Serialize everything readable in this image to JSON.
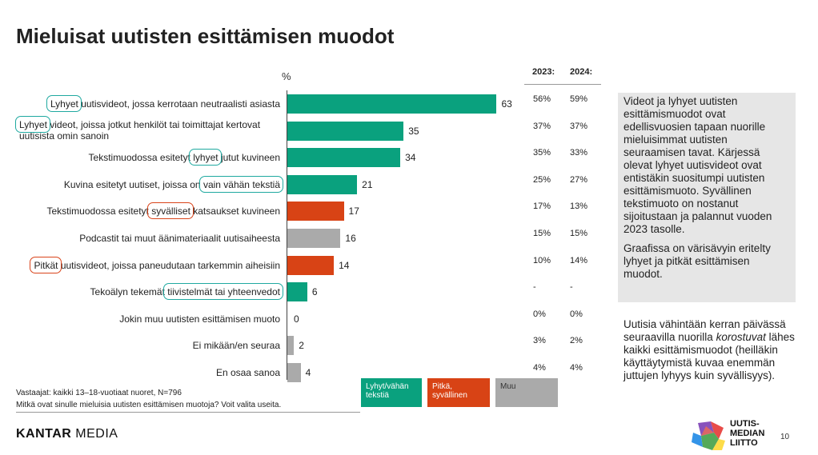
{
  "title": "Mieluisat uutisten esittämisen muodot",
  "chart_data": {
    "type": "bar",
    "orientation": "horizontal",
    "unit_label": "%",
    "categories": [
      {
        "pre": "",
        "hl": "Lyhyet",
        "post": " uutisvideot, jossa kerrotaan neutraalisti asiasta",
        "group": "short"
      },
      {
        "pre": "",
        "hl": "Lyhyet",
        "post": " videot, joissa jotkut henkilöt tai toimittajat kertovat uutisista omin sanoin",
        "group": "short"
      },
      {
        "pre": "Tekstimuodossa esitetyt ",
        "hl": "lyhyet",
        "post": " jutut kuvineen",
        "group": "short"
      },
      {
        "pre": "Kuvina esitetyt uutiset, joissa on ",
        "hl": "vain vähän tekstiä",
        "post": "",
        "group": "short"
      },
      {
        "pre": "Tekstimuodossa esitetyt ",
        "hl": "syvälliset",
        "post": " katsaukset kuvineen",
        "group": "long"
      },
      {
        "pre": "Podcastit  tai muut äänimateriaalit uutisaiheesta",
        "hl": "",
        "post": "",
        "group": "other"
      },
      {
        "pre": "",
        "hl": "Pitkät",
        "post": " uutisvideot, joissa paneudutaan tarkemmin aiheisiin",
        "group": "long"
      },
      {
        "pre": "Tekoälyn tekemät ",
        "hl": "tiivistelmät tai yhteenvedot",
        "post": "",
        "group": "short"
      },
      {
        "pre": "Jokin muu uutisten esittämisen muoto",
        "hl": "",
        "post": "",
        "group": "other"
      },
      {
        "pre": "Ei mikään/en seuraa",
        "hl": "",
        "post": "",
        "group": "other"
      },
      {
        "pre": "En osaa sanoa",
        "hl": "",
        "post": "",
        "group": "other"
      }
    ],
    "values": [
      63,
      35,
      34,
      21,
      17,
      16,
      14,
      6,
      0,
      2,
      4
    ],
    "xlim": [
      0,
      100
    ],
    "year_columns": [
      {
        "label": "2023:",
        "values": [
          "56%",
          "37%",
          "35%",
          "25%",
          "17%",
          "15%",
          "10%",
          "-",
          "0%",
          "3%",
          "4%"
        ]
      },
      {
        "label": "2024:",
        "values": [
          "59%",
          "37%",
          "33%",
          "27%",
          "13%",
          "15%",
          "14%",
          "-",
          "0%",
          "2%",
          "4%"
        ]
      }
    ],
    "colors": {
      "short": "#0aa17e",
      "long": "#d84315",
      "other": "#aaaaaa"
    },
    "legend": [
      {
        "label": "Lyhyt/vähän tekstiä",
        "group": "short"
      },
      {
        "label": "Pitkä, syvällinen",
        "group": "long"
      },
      {
        "label": "Muu",
        "group": "other"
      }
    ]
  },
  "notes": {
    "respondents": "Vastaajat: kaikki 13–18-vuotiaat nuoret, N=796",
    "question": "Mitkä ovat sinulle mieluisia uutisten esittämisen muotoja? Voit valita useita."
  },
  "info": {
    "paragraph1": "Videot ja lyhyet uutisten esittämismuodot ovat edellisvuosien tapaan nuorille mieluisimmat uutisten seuraamisen tavat. Kärjessä olevat lyhyet uutisvideot ovat entistäkin suositumpi uutisten esittämismuoto. Syvällinen tekstimuoto on nostanut sijoitustaan ja palannut vuoden 2023 tasolle.",
    "paragraph2": "Graafissa on värisävyin eritelty lyhyet ja pitkät esittämisen muodot.",
    "para3_pre": "Uutisia vähintään kerran päivässä seuraavilla nuorilla ",
    "para3_em": "korostuvat",
    "para3_post": " lähes kaikki esittämismuodot (heilläkin käyttäytymistä kuvaa enemmän juttujen lyhyys kuin syvällisyys)."
  },
  "footer": {
    "kantar": "KANTAR",
    "media": " MEDIA",
    "brand_line1": "UUTIS-",
    "brand_line2": "MEDIAN",
    "brand_line3": "LIITTO",
    "page": "10"
  }
}
